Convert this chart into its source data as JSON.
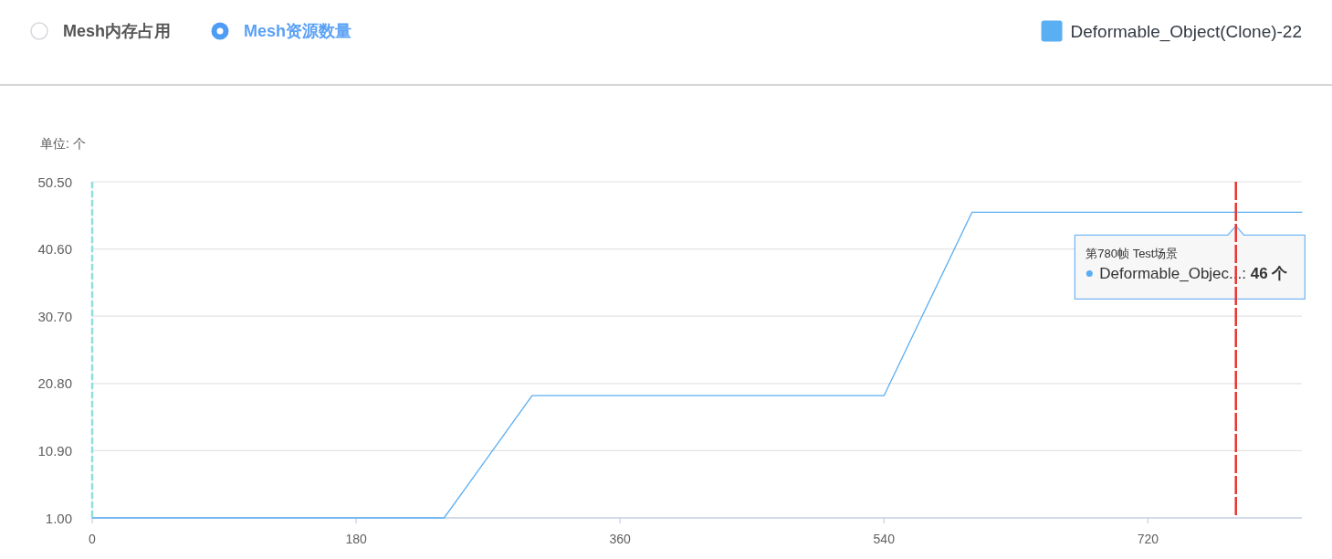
{
  "chart_data": {
    "type": "line",
    "title": "Mesh资源数量",
    "ylabel": "单位: 个",
    "annotations": [
      "Mesh内存占用",
      {
        "text": "第780帧 Test场景\nDeformable_Objec...: 46 个",
        "x": 780,
        "y": 46
      }
    ],
    "x": [
      0,
      240,
      300,
      540,
      600,
      825
    ],
    "series": [
      {
        "name": "Deformable_Object(Clone)-22",
        "color": "#5aaef2",
        "values": [
          1,
          1,
          19,
          19,
          46,
          46
        ]
      }
    ],
    "xlim": [
      0,
      825
    ],
    "xticks": [
      0,
      180,
      360,
      540,
      720
    ],
    "ylim": [
      1,
      50.5
    ],
    "yticks": [
      {
        "value": 1,
        "label": "1.00"
      },
      {
        "value": 10.9,
        "label": "10.90"
      },
      {
        "value": 20.8,
        "label": "20.80"
      },
      {
        "value": 30.7,
        "label": "30.70"
      },
      {
        "value": 40.6,
        "label": "40.60"
      },
      {
        "value": 50.5,
        "label": "50.50"
      }
    ],
    "grid": "y",
    "legend": "top right",
    "ref_lines": [
      {
        "axis": "x",
        "value": 0,
        "color": "#8fdede",
        "line_style": "dashed"
      },
      {
        "axis": "x",
        "value": 780,
        "color": "#e53935",
        "line_style": "dashed"
      }
    ]
  }
}
